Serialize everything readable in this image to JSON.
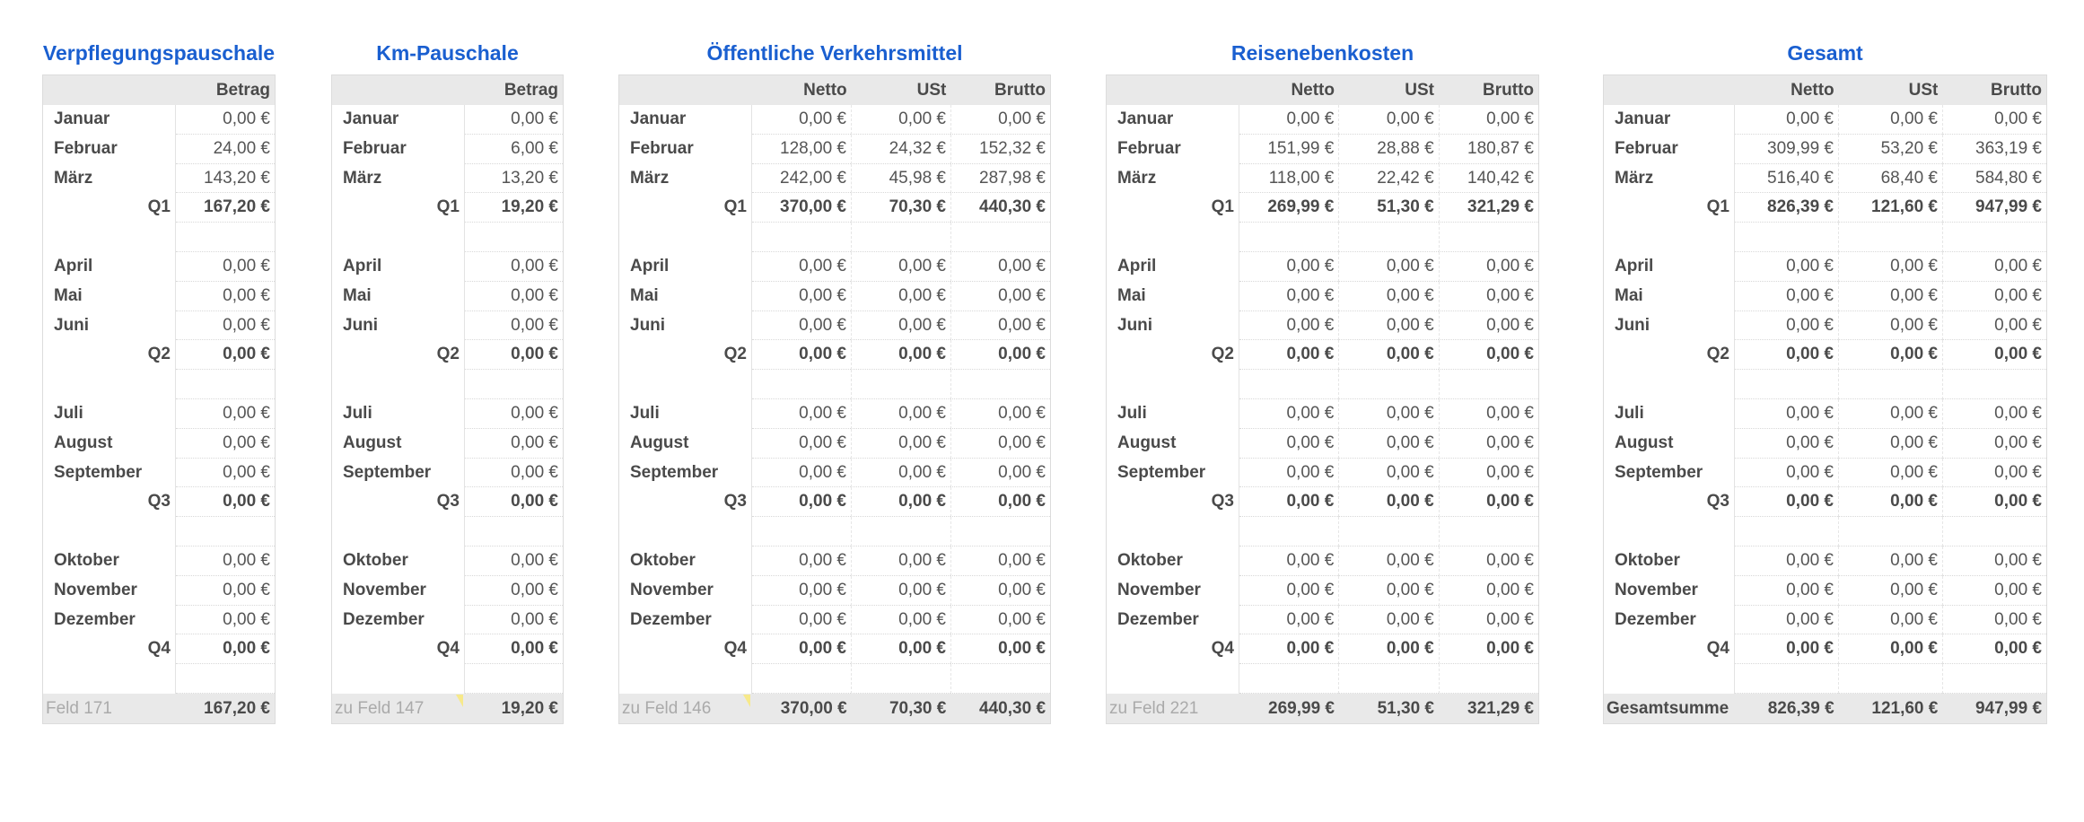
{
  "colors": {
    "title": "#1a5fd0",
    "header_bg": "#e9e9e9",
    "comment_marker": "#f7e98a"
  },
  "tables": [
    {
      "id": "verpflegungspauschale",
      "title": "Verpflegungspauschale",
      "columns": [
        "Betrag"
      ],
      "quarters": [
        {
          "months": [
            [
              "Januar",
              [
                "0,00 €"
              ]
            ],
            [
              "Februar",
              [
                "24,00 €"
              ]
            ],
            [
              "März",
              [
                "143,20 €"
              ]
            ]
          ],
          "label": "Q1",
          "total": [
            "167,20 €"
          ]
        },
        {
          "months": [
            [
              "April",
              [
                "0,00 €"
              ]
            ],
            [
              "Mai",
              [
                "0,00 €"
              ]
            ],
            [
              "Juni",
              [
                "0,00 €"
              ]
            ]
          ],
          "label": "Q2",
          "total": [
            "0,00 €"
          ]
        },
        {
          "months": [
            [
              "Juli",
              [
                "0,00 €"
              ]
            ],
            [
              "August",
              [
                "0,00 €"
              ]
            ],
            [
              "September",
              [
                "0,00 €"
              ]
            ]
          ],
          "label": "Q3",
          "total": [
            "0,00 €"
          ]
        },
        {
          "months": [
            [
              "Oktober",
              [
                "0,00 €"
              ]
            ],
            [
              "November",
              [
                "0,00 €"
              ]
            ],
            [
              "Dezember",
              [
                "0,00 €"
              ]
            ]
          ],
          "label": "Q4",
          "total": [
            "0,00 €"
          ]
        }
      ],
      "footer": {
        "label": "Feld 171",
        "values": [
          "167,20 €"
        ],
        "comment": false,
        "strong": false
      }
    },
    {
      "id": "km-pauschale",
      "title": "Km-Pauschale",
      "columns": [
        "Betrag"
      ],
      "quarters": [
        {
          "months": [
            [
              "Januar",
              [
                "0,00 €"
              ]
            ],
            [
              "Februar",
              [
                "6,00 €"
              ]
            ],
            [
              "März",
              [
                "13,20 €"
              ]
            ]
          ],
          "label": "Q1",
          "total": [
            "19,20 €"
          ]
        },
        {
          "months": [
            [
              "April",
              [
                "0,00 €"
              ]
            ],
            [
              "Mai",
              [
                "0,00 €"
              ]
            ],
            [
              "Juni",
              [
                "0,00 €"
              ]
            ]
          ],
          "label": "Q2",
          "total": [
            "0,00 €"
          ]
        },
        {
          "months": [
            [
              "Juli",
              [
                "0,00 €"
              ]
            ],
            [
              "August",
              [
                "0,00 €"
              ]
            ],
            [
              "September",
              [
                "0,00 €"
              ]
            ]
          ],
          "label": "Q3",
          "total": [
            "0,00 €"
          ]
        },
        {
          "months": [
            [
              "Oktober",
              [
                "0,00 €"
              ]
            ],
            [
              "November",
              [
                "0,00 €"
              ]
            ],
            [
              "Dezember",
              [
                "0,00 €"
              ]
            ]
          ],
          "label": "Q4",
          "total": [
            "0,00 €"
          ]
        }
      ],
      "footer": {
        "label": "zu Feld 147",
        "values": [
          "19,20 €"
        ],
        "comment": true,
        "strong": false
      }
    },
    {
      "id": "oeffentliche-verkehrsmittel",
      "title": "Öffentliche Verkehrsmittel",
      "columns": [
        "Netto",
        "USt",
        "Brutto"
      ],
      "quarters": [
        {
          "months": [
            [
              "Januar",
              [
                "0,00 €",
                "0,00 €",
                "0,00 €"
              ]
            ],
            [
              "Februar",
              [
                "128,00 €",
                "24,32 €",
                "152,32 €"
              ]
            ],
            [
              "März",
              [
                "242,00 €",
                "45,98 €",
                "287,98 €"
              ]
            ]
          ],
          "label": "Q1",
          "total": [
            "370,00 €",
            "70,30 €",
            "440,30 €"
          ]
        },
        {
          "months": [
            [
              "April",
              [
                "0,00 €",
                "0,00 €",
                "0,00 €"
              ]
            ],
            [
              "Mai",
              [
                "0,00 €",
                "0,00 €",
                "0,00 €"
              ]
            ],
            [
              "Juni",
              [
                "0,00 €",
                "0,00 €",
                "0,00 €"
              ]
            ]
          ],
          "label": "Q2",
          "total": [
            "0,00 €",
            "0,00 €",
            "0,00 €"
          ]
        },
        {
          "months": [
            [
              "Juli",
              [
                "0,00 €",
                "0,00 €",
                "0,00 €"
              ]
            ],
            [
              "August",
              [
                "0,00 €",
                "0,00 €",
                "0,00 €"
              ]
            ],
            [
              "September",
              [
                "0,00 €",
                "0,00 €",
                "0,00 €"
              ]
            ]
          ],
          "label": "Q3",
          "total": [
            "0,00 €",
            "0,00 €",
            "0,00 €"
          ]
        },
        {
          "months": [
            [
              "Oktober",
              [
                "0,00 €",
                "0,00 €",
                "0,00 €"
              ]
            ],
            [
              "November",
              [
                "0,00 €",
                "0,00 €",
                "0,00 €"
              ]
            ],
            [
              "Dezember",
              [
                "0,00 €",
                "0,00 €",
                "0,00 €"
              ]
            ]
          ],
          "label": "Q4",
          "total": [
            "0,00 €",
            "0,00 €",
            "0,00 €"
          ]
        }
      ],
      "footer": {
        "label": "zu Feld 146",
        "values": [
          "370,00 €",
          "70,30 €",
          "440,30 €"
        ],
        "comment": true,
        "strong": false
      }
    },
    {
      "id": "reisenebenkosten",
      "title": "Reisenebenkosten",
      "columns": [
        "Netto",
        "USt",
        "Brutto"
      ],
      "quarters": [
        {
          "months": [
            [
              "Januar",
              [
                "0,00 €",
                "0,00 €",
                "0,00 €"
              ]
            ],
            [
              "Februar",
              [
                "151,99 €",
                "28,88 €",
                "180,87 €"
              ]
            ],
            [
              "März",
              [
                "118,00 €",
                "22,42 €",
                "140,42 €"
              ]
            ]
          ],
          "label": "Q1",
          "total": [
            "269,99 €",
            "51,30 €",
            "321,29 €"
          ]
        },
        {
          "months": [
            [
              "April",
              [
                "0,00 €",
                "0,00 €",
                "0,00 €"
              ]
            ],
            [
              "Mai",
              [
                "0,00 €",
                "0,00 €",
                "0,00 €"
              ]
            ],
            [
              "Juni",
              [
                "0,00 €",
                "0,00 €",
                "0,00 €"
              ]
            ]
          ],
          "label": "Q2",
          "total": [
            "0,00 €",
            "0,00 €",
            "0,00 €"
          ]
        },
        {
          "months": [
            [
              "Juli",
              [
                "0,00 €",
                "0,00 €",
                "0,00 €"
              ]
            ],
            [
              "August",
              [
                "0,00 €",
                "0,00 €",
                "0,00 €"
              ]
            ],
            [
              "September",
              [
                "0,00 €",
                "0,00 €",
                "0,00 €"
              ]
            ]
          ],
          "label": "Q3",
          "total": [
            "0,00 €",
            "0,00 €",
            "0,00 €"
          ]
        },
        {
          "months": [
            [
              "Oktober",
              [
                "0,00 €",
                "0,00 €",
                "0,00 €"
              ]
            ],
            [
              "November",
              [
                "0,00 €",
                "0,00 €",
                "0,00 €"
              ]
            ],
            [
              "Dezember",
              [
                "0,00 €",
                "0,00 €",
                "0,00 €"
              ]
            ]
          ],
          "label": "Q4",
          "total": [
            "0,00 €",
            "0,00 €",
            "0,00 €"
          ]
        }
      ],
      "footer": {
        "label": "zu Feld 221",
        "values": [
          "269,99 €",
          "51,30 €",
          "321,29 €"
        ],
        "comment": false,
        "strong": false
      }
    },
    {
      "id": "gesamt",
      "title": "Gesamt",
      "columns": [
        "Netto",
        "USt",
        "Brutto"
      ],
      "quarters": [
        {
          "months": [
            [
              "Januar",
              [
                "0,00 €",
                "0,00 €",
                "0,00 €"
              ]
            ],
            [
              "Februar",
              [
                "309,99 €",
                "53,20 €",
                "363,19 €"
              ]
            ],
            [
              "März",
              [
                "516,40 €",
                "68,40 €",
                "584,80 €"
              ]
            ]
          ],
          "label": "Q1",
          "total": [
            "826,39 €",
            "121,60 €",
            "947,99 €"
          ]
        },
        {
          "months": [
            [
              "April",
              [
                "0,00 €",
                "0,00 €",
                "0,00 €"
              ]
            ],
            [
              "Mai",
              [
                "0,00 €",
                "0,00 €",
                "0,00 €"
              ]
            ],
            [
              "Juni",
              [
                "0,00 €",
                "0,00 €",
                "0,00 €"
              ]
            ]
          ],
          "label": "Q2",
          "total": [
            "0,00 €",
            "0,00 €",
            "0,00 €"
          ]
        },
        {
          "months": [
            [
              "Juli",
              [
                "0,00 €",
                "0,00 €",
                "0,00 €"
              ]
            ],
            [
              "August",
              [
                "0,00 €",
                "0,00 €",
                "0,00 €"
              ]
            ],
            [
              "September",
              [
                "0,00 €",
                "0,00 €",
                "0,00 €"
              ]
            ]
          ],
          "label": "Q3",
          "total": [
            "0,00 €",
            "0,00 €",
            "0,00 €"
          ]
        },
        {
          "months": [
            [
              "Oktober",
              [
                "0,00 €",
                "0,00 €",
                "0,00 €"
              ]
            ],
            [
              "November",
              [
                "0,00 €",
                "0,00 €",
                "0,00 €"
              ]
            ],
            [
              "Dezember",
              [
                "0,00 €",
                "0,00 €",
                "0,00 €"
              ]
            ]
          ],
          "label": "Q4",
          "total": [
            "0,00 €",
            "0,00 €",
            "0,00 €"
          ]
        }
      ],
      "footer": {
        "label": "Gesamtsumme",
        "values": [
          "826,39 €",
          "121,60 €",
          "947,99 €"
        ],
        "comment": false,
        "strong": true
      }
    }
  ]
}
